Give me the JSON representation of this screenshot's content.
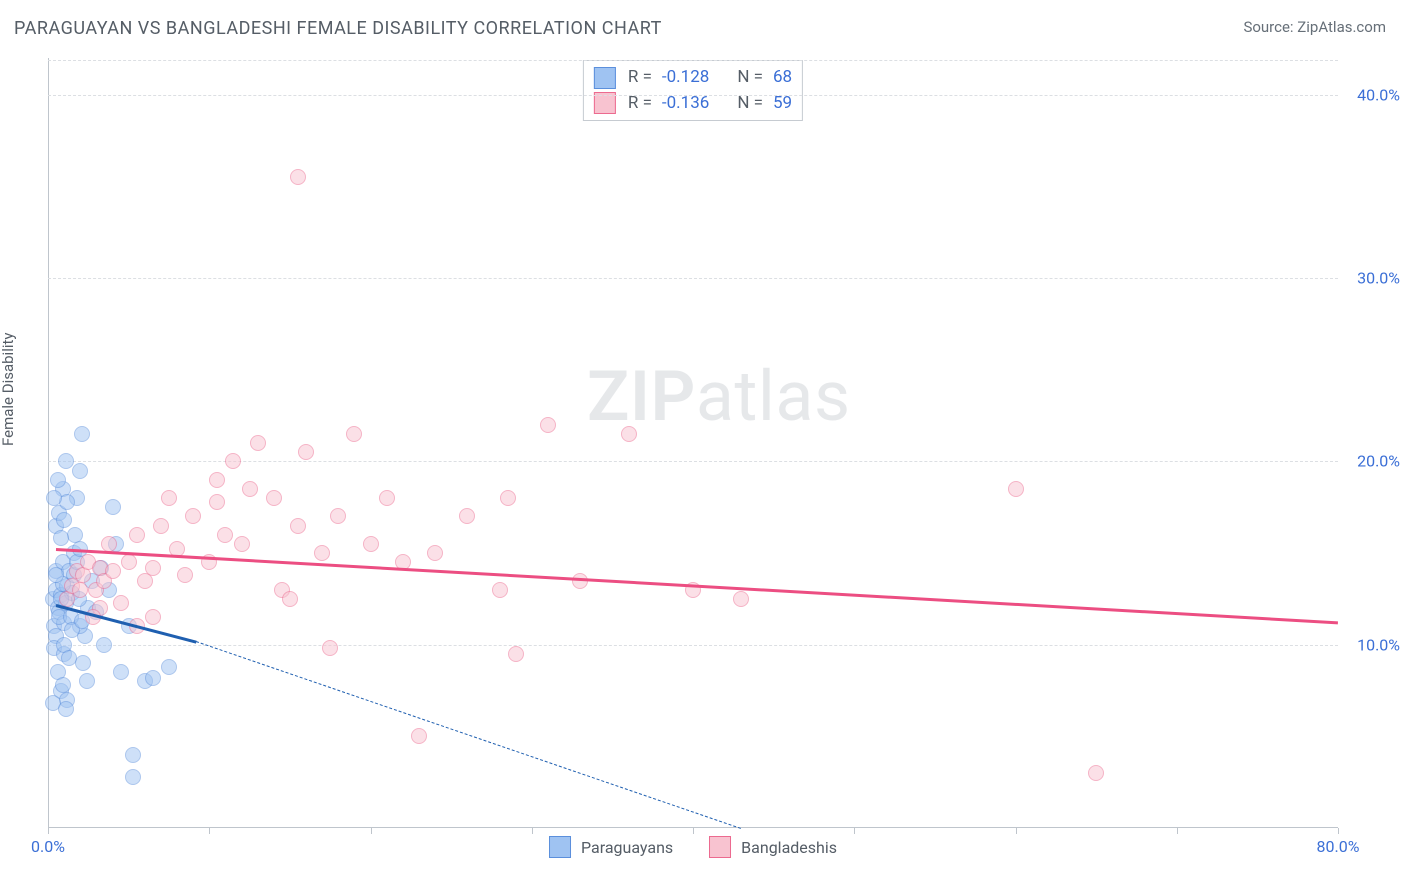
{
  "title": "PARAGUAYAN VS BANGLADESHI FEMALE DISABILITY CORRELATION CHART",
  "source_label": "Source: ",
  "source_name": "ZipAtlas.com",
  "ylabel": "Female Disability",
  "watermark": {
    "part1": "ZIP",
    "part2": "atlas"
  },
  "chart": {
    "type": "scatter",
    "xlim": [
      0,
      80
    ],
    "ylim": [
      0,
      42
    ],
    "x_ticks": [
      0,
      10,
      20,
      30,
      40,
      50,
      60,
      70,
      80
    ],
    "x_tick_labels": {
      "0": "0.0%",
      "80": "80.0%"
    },
    "y_gridlines": [
      10,
      20,
      30,
      40
    ],
    "y_tick_labels": {
      "10": "10.0%",
      "20": "20.0%",
      "30": "30.0%",
      "40": "40.0%"
    },
    "background_color": "#ffffff",
    "grid_color": "#dcdfe3",
    "axis_color": "#bfc5cc",
    "label_color": "#3b6fd6",
    "marker_radius": 8,
    "marker_opacity": 0.5,
    "series": [
      {
        "name": "Paraguayans",
        "fill": "#9fc3f2",
        "stroke": "#5b8fdc",
        "trend_color": "#1f5fb0",
        "R": "-0.128",
        "N": "68",
        "trend": {
          "x1": 0.5,
          "y1": 12.2,
          "x2": 9.2,
          "y2": 10.2,
          "solid": true
        },
        "trend_ext": {
          "x1": 9.2,
          "y1": 10.2,
          "x2": 43,
          "y2": 0,
          "solid": false
        },
        "points": [
          [
            0.3,
            12.5
          ],
          [
            0.4,
            11.0
          ],
          [
            0.5,
            13.0
          ],
          [
            0.6,
            12.0
          ],
          [
            0.5,
            10.5
          ],
          [
            0.7,
            11.8
          ],
          [
            0.8,
            12.7
          ],
          [
            1.0,
            11.2
          ],
          [
            1.2,
            13.2
          ],
          [
            0.5,
            14.0
          ],
          [
            0.9,
            14.5
          ],
          [
            1.1,
            12.3
          ],
          [
            0.4,
            9.8
          ],
          [
            0.6,
            8.5
          ],
          [
            0.8,
            7.5
          ],
          [
            1.2,
            7.0
          ],
          [
            1.0,
            9.5
          ],
          [
            1.5,
            12.8
          ],
          [
            1.3,
            14.0
          ],
          [
            1.6,
            15.0
          ],
          [
            1.7,
            16.0
          ],
          [
            1.8,
            18.0
          ],
          [
            2.0,
            19.5
          ],
          [
            2.1,
            21.5
          ],
          [
            0.3,
            6.8
          ],
          [
            0.5,
            16.5
          ],
          [
            0.7,
            17.2
          ],
          [
            0.9,
            18.5
          ],
          [
            1.1,
            20.0
          ],
          [
            2.5,
            12.0
          ],
          [
            2.3,
            10.5
          ],
          [
            2.7,
            13.5
          ],
          [
            3.0,
            11.8
          ],
          [
            3.3,
            14.2
          ],
          [
            3.5,
            10.0
          ],
          [
            3.8,
            13.0
          ],
          [
            4.0,
            17.5
          ],
          [
            4.2,
            15.5
          ],
          [
            4.5,
            8.5
          ],
          [
            5.0,
            11.0
          ],
          [
            5.3,
            2.8
          ],
          [
            5.3,
            4.0
          ],
          [
            6.0,
            8.0
          ],
          [
            6.5,
            8.2
          ],
          [
            7.5,
            8.8
          ],
          [
            2.0,
            11.0
          ],
          [
            2.2,
            9.0
          ],
          [
            2.4,
            8.0
          ],
          [
            0.8,
            12.5
          ],
          [
            0.9,
            13.3
          ],
          [
            0.7,
            11.5
          ],
          [
            1.0,
            10.0
          ],
          [
            1.4,
            11.5
          ],
          [
            1.6,
            13.8
          ],
          [
            1.8,
            14.5
          ],
          [
            2.0,
            15.2
          ],
          [
            1.2,
            17.8
          ],
          [
            0.6,
            19.0
          ],
          [
            0.4,
            18.0
          ],
          [
            0.5,
            13.8
          ],
          [
            0.9,
            7.8
          ],
          [
            1.1,
            6.5
          ],
          [
            1.3,
            9.3
          ],
          [
            1.5,
            10.8
          ],
          [
            1.9,
            12.5
          ],
          [
            2.1,
            11.3
          ],
          [
            0.8,
            15.8
          ],
          [
            1.0,
            16.8
          ]
        ]
      },
      {
        "name": "Bangladeshis",
        "fill": "#f8c3d0",
        "stroke": "#ec6a8f",
        "trend_color": "#ec4e82",
        "R": "-0.136",
        "N": "59",
        "trend": {
          "x1": 0.5,
          "y1": 15.3,
          "x2": 80,
          "y2": 11.3,
          "solid": true
        },
        "points": [
          [
            1.2,
            12.5
          ],
          [
            1.5,
            13.2
          ],
          [
            1.8,
            14.0
          ],
          [
            2.0,
            13.0
          ],
          [
            2.2,
            13.8
          ],
          [
            2.5,
            14.5
          ],
          [
            3.0,
            13.0
          ],
          [
            3.2,
            14.2
          ],
          [
            3.5,
            13.5
          ],
          [
            3.8,
            15.5
          ],
          [
            4.0,
            14.0
          ],
          [
            5.0,
            14.5
          ],
          [
            5.5,
            16.0
          ],
          [
            6.0,
            13.5
          ],
          [
            6.5,
            14.2
          ],
          [
            7.0,
            16.5
          ],
          [
            7.5,
            18.0
          ],
          [
            8.0,
            15.2
          ],
          [
            8.5,
            13.8
          ],
          [
            9.0,
            17.0
          ],
          [
            10.0,
            14.5
          ],
          [
            10.5,
            17.8
          ],
          [
            11.0,
            16.0
          ],
          [
            12.0,
            15.5
          ],
          [
            12.5,
            18.5
          ],
          [
            13.0,
            21.0
          ],
          [
            14.0,
            18.0
          ],
          [
            14.5,
            13.0
          ],
          [
            15.0,
            12.5
          ],
          [
            15.5,
            16.5
          ],
          [
            16.0,
            20.5
          ],
          [
            17.0,
            15.0
          ],
          [
            17.5,
            9.8
          ],
          [
            18.0,
            17.0
          ],
          [
            19.0,
            21.5
          ],
          [
            20.0,
            15.5
          ],
          [
            21.0,
            18.0
          ],
          [
            22.0,
            14.5
          ],
          [
            23.0,
            5.0
          ],
          [
            24.0,
            15.0
          ],
          [
            26.0,
            17.0
          ],
          [
            28.0,
            13.0
          ],
          [
            28.5,
            18.0
          ],
          [
            29.0,
            9.5
          ],
          [
            31.0,
            22.0
          ],
          [
            33.0,
            13.5
          ],
          [
            36.0,
            21.5
          ],
          [
            40.0,
            13.0
          ],
          [
            43.0,
            12.5
          ],
          [
            60.0,
            18.5
          ],
          [
            65.0,
            3.0
          ],
          [
            15.5,
            35.5
          ],
          [
            10.5,
            19.0
          ],
          [
            11.5,
            20.0
          ],
          [
            6.5,
            11.5
          ],
          [
            5.5,
            11.0
          ],
          [
            4.5,
            12.3
          ],
          [
            3.2,
            12.0
          ],
          [
            2.8,
            11.5
          ]
        ]
      }
    ]
  },
  "stats_box": {
    "r_label": "R =",
    "n_label": "N ="
  },
  "bottom_legend": [
    {
      "label": "Paraguayans",
      "swatch_fill": "#9fc3f2",
      "swatch_stroke": "#5b8fdc"
    },
    {
      "label": "Bangladeshis",
      "swatch_fill": "#f8c3d0",
      "swatch_stroke": "#ec6a8f"
    }
  ]
}
